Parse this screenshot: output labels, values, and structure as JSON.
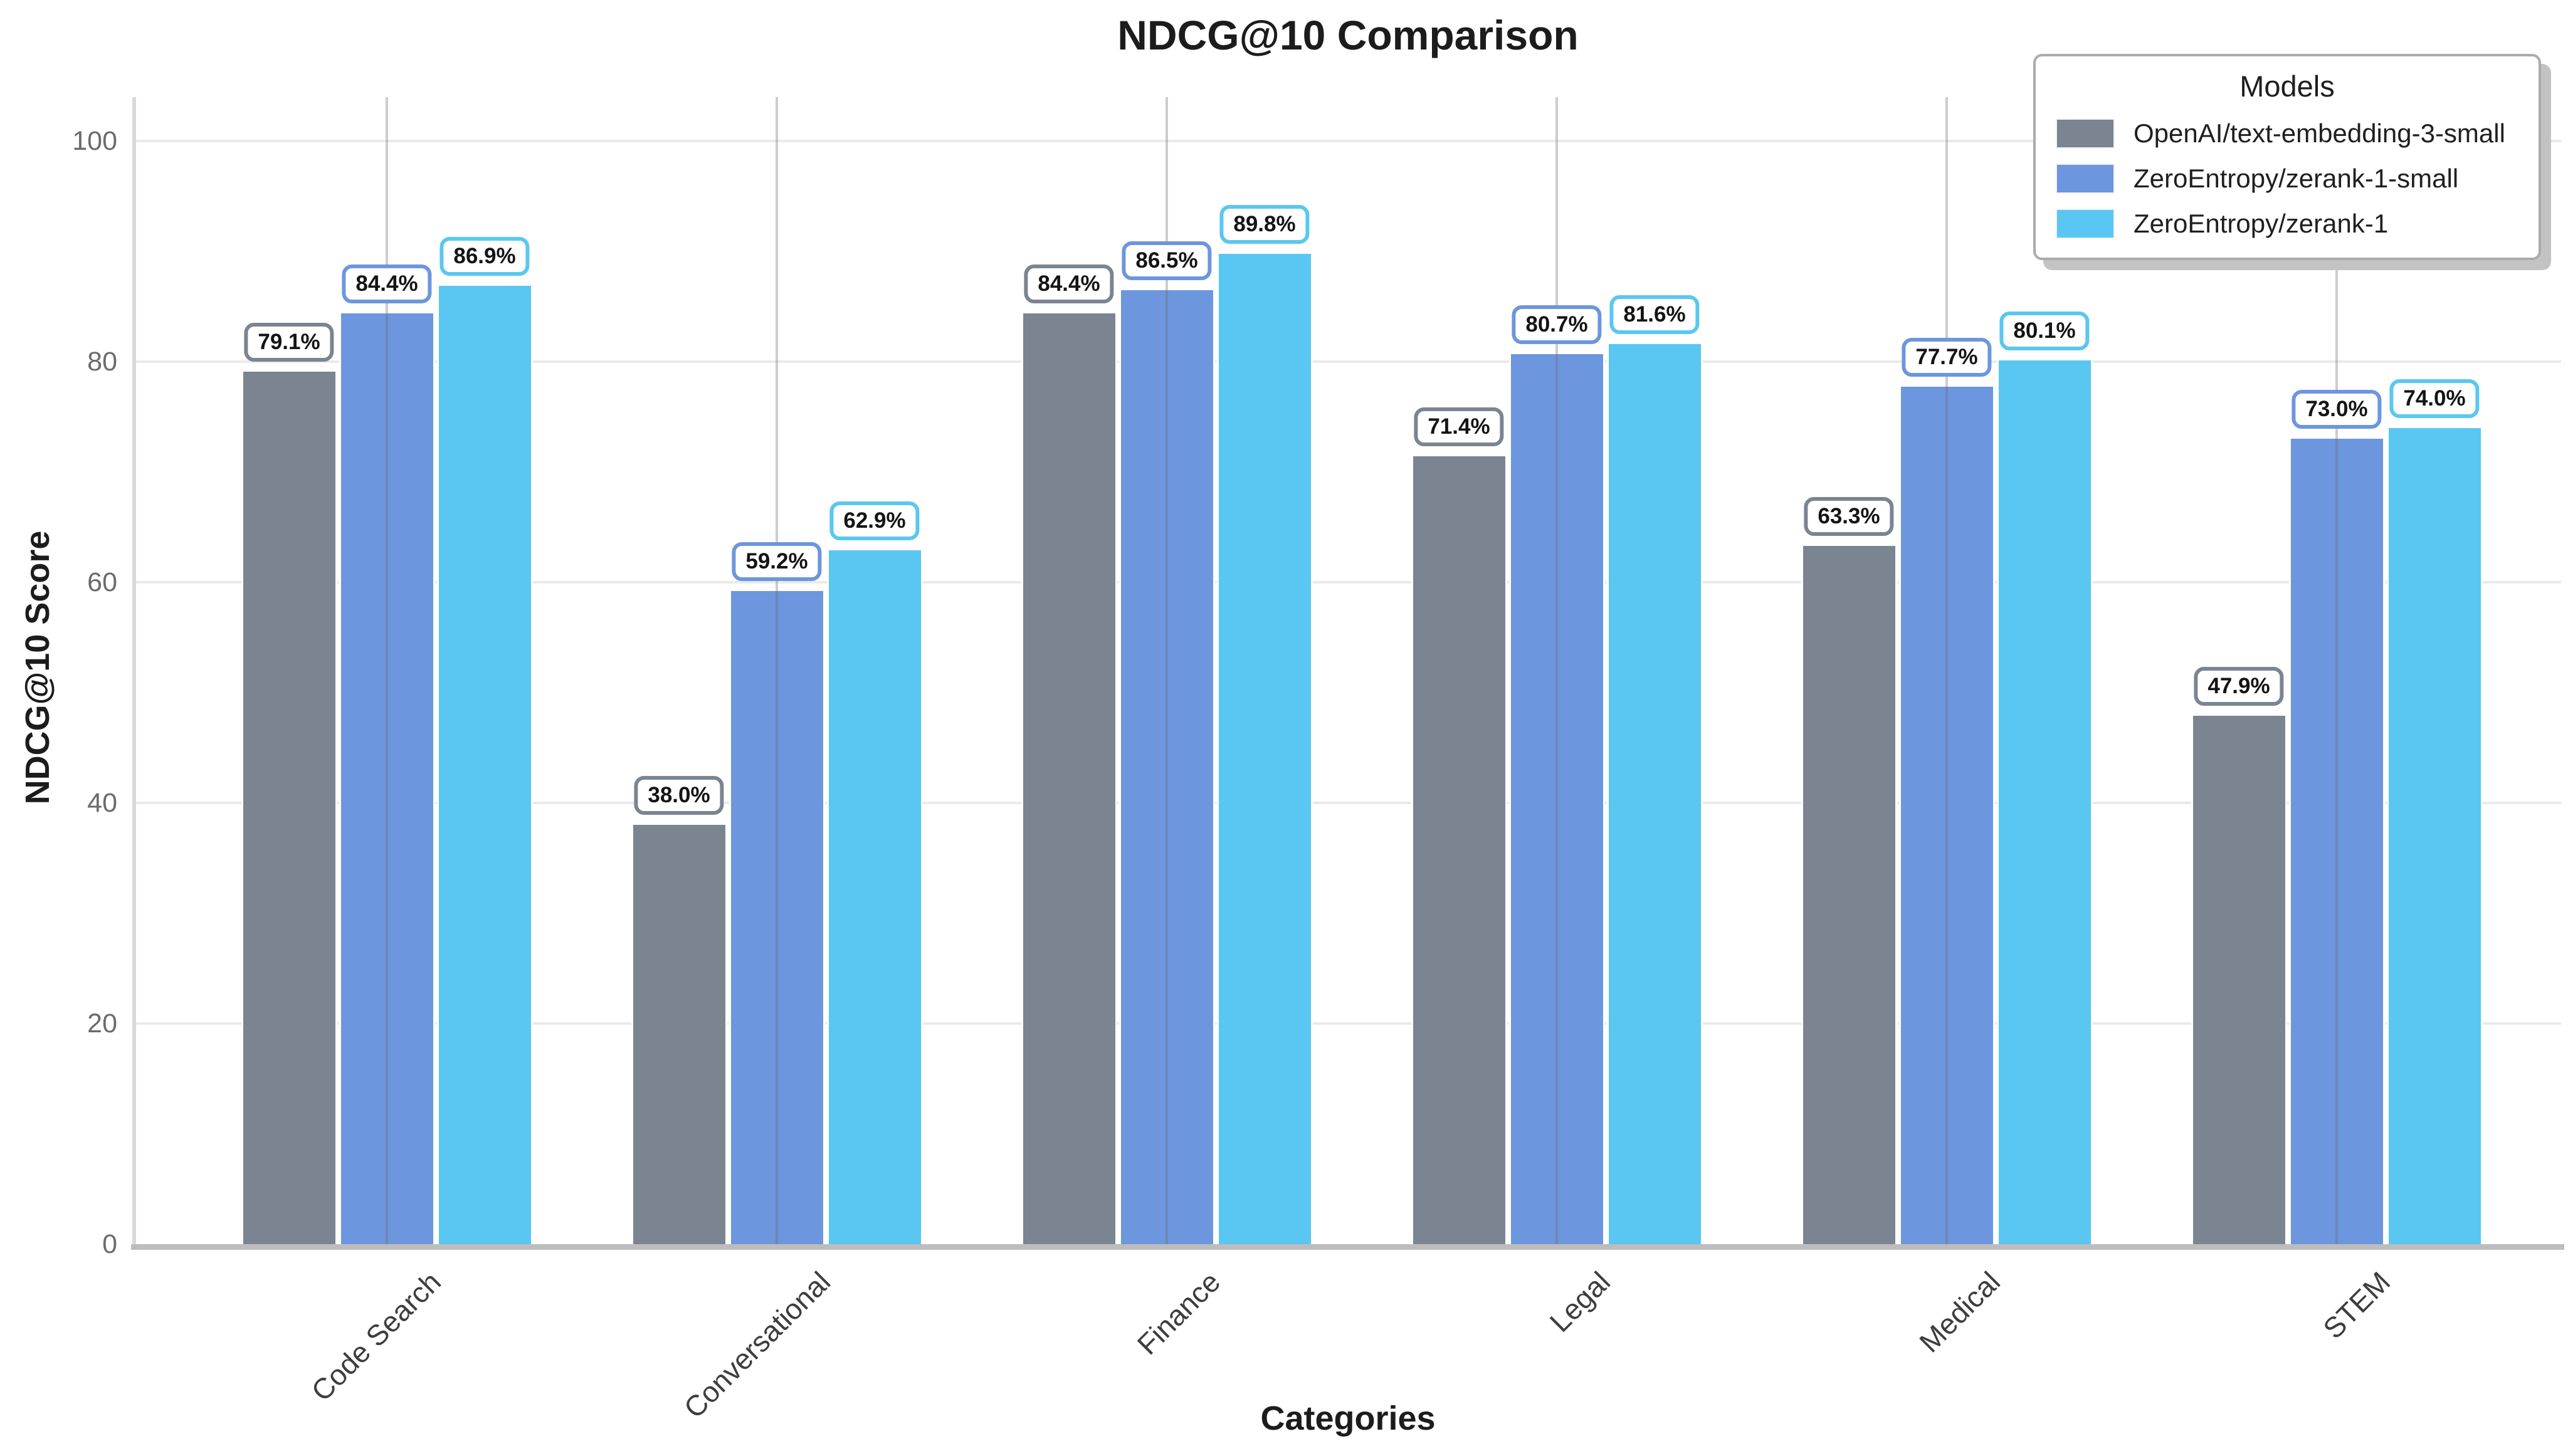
{
  "page": {
    "background": "#ffffff"
  },
  "chart_data": {
    "type": "bar",
    "title": "NDCG@10 Comparison",
    "xlabel": "Categories",
    "ylabel": "NDCG@10 Score",
    "ylim": [
      0,
      100
    ],
    "y_ticks": [
      0,
      20,
      40,
      60,
      80,
      100
    ],
    "grid": true,
    "categories": [
      "Code Search",
      "Conversational",
      "Finance",
      "Legal",
      "Medical",
      "STEM"
    ],
    "series": [
      {
        "name": "OpenAI/text-embedding-3-small",
        "color": "#7b8491",
        "values": [
          79.1,
          38.0,
          84.4,
          71.4,
          63.3,
          47.9
        ],
        "labels": [
          "79.1%",
          "38.0%",
          "84.4%",
          "71.4%",
          "63.3%",
          "47.9%"
        ]
      },
      {
        "name": "ZeroEntropy/zerank-1-small",
        "color": "#6c96de",
        "values": [
          84.4,
          59.2,
          86.5,
          80.7,
          77.7,
          73.0
        ],
        "labels": [
          "84.4%",
          "59.2%",
          "86.5%",
          "80.7%",
          "77.7%",
          "73.0%"
        ]
      },
      {
        "name": "ZeroEntropy/zerank-1",
        "color": "#59c7f1",
        "values": [
          86.9,
          62.9,
          89.8,
          81.6,
          80.1,
          74.0
        ],
        "labels": [
          "86.9%",
          "62.9%",
          "89.8%",
          "81.6%",
          "80.1%",
          "74.0%"
        ]
      }
    ],
    "legend": {
      "title": "Models",
      "position": "upper right"
    },
    "gridline_color_horizontal": "#eaeaea",
    "gridline_color_vertical": "#b5b5b5",
    "axis_line_color": "#bdbdbd"
  }
}
